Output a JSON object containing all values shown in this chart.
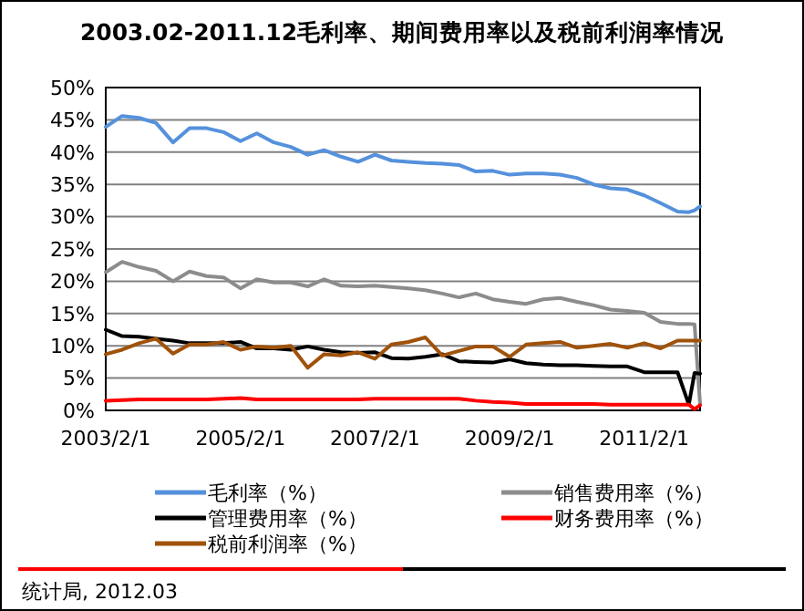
{
  "chart_data": {
    "type": "line",
    "title": "2003.02-2011.12毛利率、期间费用率以及税前利润率情况",
    "x": [
      "2003-02",
      "2003-05",
      "2003-08",
      "2003-11",
      "2004-02",
      "2004-05",
      "2004-08",
      "2004-11",
      "2005-02",
      "2005-05",
      "2005-08",
      "2005-11",
      "2006-02",
      "2006-05",
      "2006-08",
      "2006-11",
      "2007-02",
      "2007-05",
      "2007-08",
      "2007-11",
      "2008-02",
      "2008-05",
      "2008-08",
      "2008-11",
      "2009-02",
      "2009-05",
      "2009-08",
      "2009-11",
      "2010-02",
      "2010-05",
      "2010-08",
      "2010-11",
      "2011-02",
      "2011-05",
      "2011-08",
      "2011-10",
      "2011-11",
      "2011-12"
    ],
    "series": [
      {
        "name": "毛利率（%）",
        "color": "#5591dc",
        "values": [
          43.9,
          45.6,
          45.3,
          44.5,
          41.5,
          43.7,
          43.7,
          43.1,
          41.7,
          42.9,
          41.5,
          40.8,
          39.6,
          40.3,
          39.3,
          38.5,
          39.6,
          38.7,
          38.5,
          38.3,
          38.2,
          38.0,
          37.0,
          37.1,
          36.5,
          36.7,
          36.7,
          36.5,
          36.0,
          35.0,
          34.4,
          34.2,
          33.3,
          32.1,
          30.8,
          30.7,
          31.0,
          31.6
        ]
      },
      {
        "name": "销售费用率（%）",
        "color": "#8c8c8c",
        "values": [
          21.4,
          23.0,
          22.2,
          21.6,
          20.0,
          21.5,
          20.8,
          20.6,
          18.9,
          20.3,
          19.8,
          19.8,
          19.2,
          20.3,
          19.3,
          19.2,
          19.3,
          19.1,
          18.9,
          18.6,
          18.1,
          17.5,
          18.1,
          17.2,
          16.8,
          16.5,
          17.2,
          17.4,
          16.8,
          16.3,
          15.6,
          15.4,
          15.1,
          13.7,
          13.4,
          13.4,
          13.3,
          1.0
        ]
      },
      {
        "name": "管理费用率（%）",
        "color": "#000000",
        "values": [
          12.5,
          11.5,
          11.4,
          11.1,
          10.8,
          10.4,
          10.4,
          10.4,
          10.6,
          9.6,
          9.6,
          9.4,
          9.9,
          9.4,
          9.0,
          8.9,
          9.0,
          8.1,
          8.0,
          8.3,
          8.7,
          7.6,
          7.5,
          7.4,
          7.9,
          7.3,
          7.1,
          7.0,
          7.0,
          6.9,
          6.8,
          6.8,
          5.9,
          5.9,
          5.9,
          0.9,
          5.8,
          5.7
        ]
      },
      {
        "name": "财务费用率（%）",
        "color": "#ff0000",
        "values": [
          1.5,
          1.6,
          1.7,
          1.7,
          1.7,
          1.7,
          1.7,
          1.8,
          1.9,
          1.7,
          1.7,
          1.7,
          1.7,
          1.7,
          1.7,
          1.7,
          1.8,
          1.8,
          1.8,
          1.8,
          1.8,
          1.8,
          1.5,
          1.3,
          1.2,
          1.0,
          1.0,
          1.0,
          1.0,
          1.0,
          0.9,
          0.9,
          0.9,
          0.9,
          0.9,
          0.9,
          0.2,
          0.8
        ]
      },
      {
        "name": "税前利润率（%）",
        "color": "#a0520a",
        "values": [
          8.7,
          9.4,
          10.4,
          11.1,
          8.8,
          10.2,
          10.2,
          10.6,
          9.4,
          9.9,
          9.7,
          10.0,
          6.6,
          8.7,
          8.5,
          9.0,
          8.0,
          10.2,
          10.6,
          11.3,
          8.5,
          9.2,
          9.9,
          9.9,
          8.3,
          10.2,
          10.4,
          10.6,
          9.7,
          10.0,
          10.3,
          9.7,
          10.4,
          9.6,
          10.8,
          10.8,
          10.8,
          10.8
        ]
      }
    ],
    "xlim": [
      "2003-02",
      "2011-12"
    ],
    "xticks": [
      {
        "value": "2003-02-01",
        "label": "2003/2/1"
      },
      {
        "value": "2005-02-01",
        "label": "2005/2/1"
      },
      {
        "value": "2007-02-01",
        "label": "2007/2/1"
      },
      {
        "value": "2009-02-01",
        "label": "2009/2/1"
      },
      {
        "value": "2011-02-01",
        "label": "2011/2/1"
      }
    ],
    "ylim": [
      0,
      50
    ],
    "yticks": [
      {
        "value": 0,
        "label": "0%"
      },
      {
        "value": 5,
        "label": "5%"
      },
      {
        "value": 10,
        "label": "10%"
      },
      {
        "value": 15,
        "label": "15%"
      },
      {
        "value": 20,
        "label": "20%"
      },
      {
        "value": 25,
        "label": "25%"
      },
      {
        "value": 30,
        "label": "30%"
      },
      {
        "value": 35,
        "label": "35%"
      },
      {
        "value": 40,
        "label": "40%"
      },
      {
        "value": 45,
        "label": "45%"
      },
      {
        "value": 50,
        "label": "50%"
      }
    ],
    "grid": "y",
    "legend": "bottom",
    "annotations": [
      "统计局, 2012.03"
    ]
  }
}
